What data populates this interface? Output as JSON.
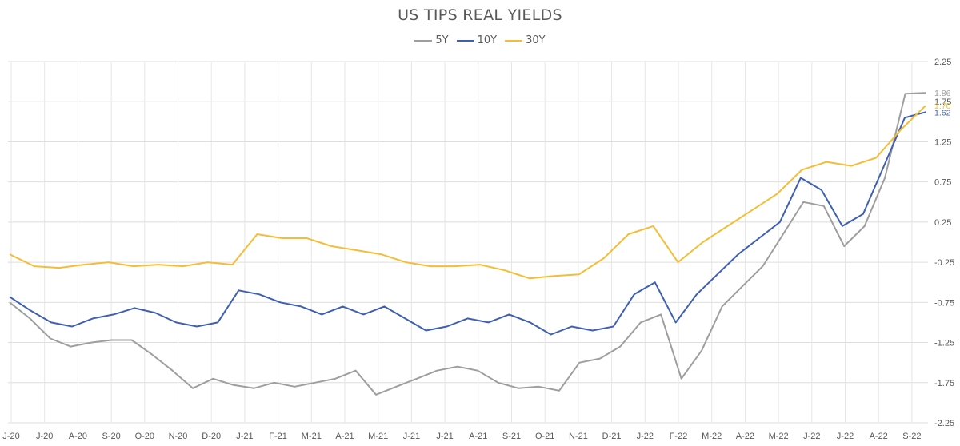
{
  "chart_data": {
    "type": "line",
    "title": "US TIPS REAL YIELDS",
    "xlabel": "",
    "ylabel": "",
    "x_tick_labels": [
      "J-20",
      "J-20",
      "A-20",
      "S-20",
      "O-20",
      "N-20",
      "D-20",
      "J-21",
      "F-21",
      "M-21",
      "A-21",
      "M-21",
      "J-21",
      "J-21",
      "A-21",
      "S-21",
      "O-21",
      "N-21",
      "D-21",
      "J-22",
      "F-22",
      "M-22",
      "A-22",
      "M-22",
      "J-22",
      "J-22",
      "A-22",
      "S-22"
    ],
    "y_ticks": [
      2.25,
      1.75,
      1.25,
      0.75,
      0.25,
      -0.25,
      -0.75,
      -1.25,
      -1.75,
      -2.25
    ],
    "y_tick_labels": [
      "2.25",
      "1.75",
      "1.25",
      "0.75",
      "0.25",
      "-0.25",
      "-0.75",
      "-1.25",
      "-1.75",
      "-2.25"
    ],
    "ylim": [
      -2.25,
      2.25
    ],
    "grid": true,
    "legend_position": "top",
    "series": [
      {
        "name": "5Y",
        "color": "#9e9e9e",
        "end_label": "1.86",
        "values": [
          -0.75,
          -0.95,
          -1.2,
          -1.3,
          -1.25,
          -1.22,
          -1.22,
          -1.4,
          -1.6,
          -1.82,
          -1.7,
          -1.78,
          -1.82,
          -1.75,
          -1.8,
          -1.75,
          -1.7,
          -1.6,
          -1.9,
          -1.8,
          -1.7,
          -1.6,
          -1.55,
          -1.6,
          -1.75,
          -1.82,
          -1.8,
          -1.85,
          -1.5,
          -1.45,
          -1.3,
          -1.0,
          -0.9,
          -1.7,
          -1.35,
          -0.8,
          -0.55,
          -0.3,
          0.1,
          0.5,
          0.45,
          -0.05,
          0.2,
          0.8,
          1.85,
          1.86
        ]
      },
      {
        "name": "10Y",
        "color": "#3f5fb0",
        "end_label": "1.62",
        "values": [
          -0.68,
          -0.85,
          -1.0,
          -1.05,
          -0.95,
          -0.9,
          -0.82,
          -0.88,
          -1.0,
          -1.05,
          -1.0,
          -0.6,
          -0.65,
          -0.75,
          -0.8,
          -0.9,
          -0.8,
          -0.9,
          -0.8,
          -0.95,
          -1.1,
          -1.05,
          -0.95,
          -1.0,
          -0.9,
          -1.0,
          -1.15,
          -1.05,
          -1.1,
          -1.05,
          -0.65,
          -0.5,
          -1.0,
          -0.65,
          -0.4,
          -0.15,
          0.05,
          0.25,
          0.8,
          0.65,
          0.2,
          0.35,
          0.95,
          1.55,
          1.62
        ]
      },
      {
        "name": "30Y",
        "color": "#f5bd34",
        "end_label": "1.70",
        "values": [
          -0.15,
          -0.3,
          -0.32,
          -0.28,
          -0.25,
          -0.3,
          -0.28,
          -0.3,
          -0.25,
          -0.28,
          0.1,
          0.05,
          0.05,
          -0.05,
          -0.1,
          -0.15,
          -0.25,
          -0.3,
          -0.3,
          -0.28,
          -0.35,
          -0.45,
          -0.42,
          -0.4,
          -0.2,
          0.1,
          0.2,
          -0.25,
          0.0,
          0.2,
          0.4,
          0.6,
          0.9,
          1.0,
          0.95,
          1.05,
          1.4,
          1.7
        ]
      }
    ]
  }
}
